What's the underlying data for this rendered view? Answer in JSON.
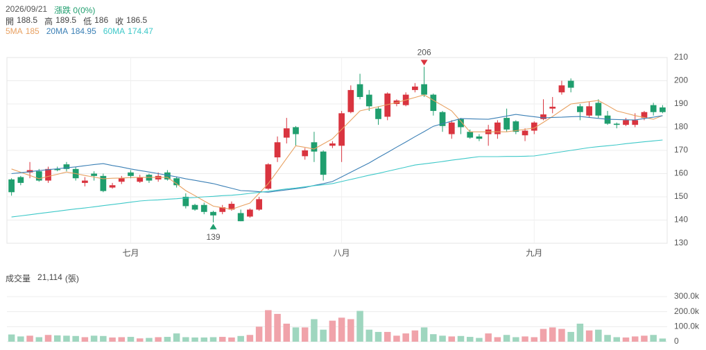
{
  "header": {
    "date": "2026/09/21",
    "change": "漲跌 0(0%)"
  },
  "chart_data": [
    {
      "type": "candlestick",
      "categories": [
        null,
        null,
        null,
        null,
        null,
        null,
        null,
        null,
        null,
        null,
        null,
        null,
        null,
        "七月",
        null,
        null,
        null,
        null,
        null,
        null,
        null,
        null,
        null,
        null,
        null,
        null,
        null,
        null,
        null,
        null,
        null,
        null,
        null,
        null,
        null,
        null,
        "八月",
        null,
        null,
        null,
        null,
        null,
        null,
        null,
        null,
        null,
        null,
        null,
        null,
        null,
        null,
        null,
        null,
        null,
        null,
        null,
        null,
        "九月",
        null,
        null,
        null,
        null,
        null,
        null,
        null,
        null,
        null,
        null,
        null,
        null,
        null,
        null
      ],
      "open": [
        157.5,
        158.5,
        160.5,
        161,
        157,
        162,
        164,
        162,
        156,
        160,
        159,
        154,
        156.5,
        160.5,
        156.5,
        159.5,
        157.5,
        160.5,
        158,
        150,
        146.5,
        146.5,
        143.5,
        143.5,
        144.5,
        143,
        141.5,
        144.5,
        153.5,
        167,
        175.5,
        180,
        167.5,
        173.5,
        169.5,
        172,
        172,
        186.5,
        198.5,
        194,
        188,
        184.5,
        190,
        189.5,
        196,
        198.5,
        194,
        186.5,
        177,
        183.5,
        178,
        176,
        177,
        177,
        184,
        182.5,
        176.5,
        178.5,
        183.5,
        188,
        195,
        200,
        189,
        185,
        190.5,
        185,
        181.5,
        181,
        181,
        184,
        189.5,
        188.5
      ],
      "high": [
        158,
        159,
        165,
        162,
        163,
        163,
        165,
        163,
        158.5,
        161,
        160,
        156,
        159,
        161.5,
        159.5,
        160,
        160.5,
        161.5,
        158.5,
        151.5,
        147,
        147.5,
        144,
        146.5,
        148,
        144.5,
        145,
        150,
        164.5,
        176,
        184,
        180.5,
        171,
        178,
        170,
        174,
        187,
        198,
        203,
        196,
        189,
        195,
        192,
        195,
        199,
        206,
        194.5,
        187,
        183,
        184,
        179,
        177,
        181,
        183,
        188,
        183,
        179.5,
        182.5,
        192,
        193,
        200,
        201,
        190,
        191,
        192,
        187,
        182,
        184,
        186,
        187,
        190.5,
        189.5
      ],
      "low": [
        150.5,
        155,
        158,
        156.5,
        156,
        161,
        161,
        157,
        154.5,
        157,
        152,
        153.5,
        155.5,
        158,
        156,
        156,
        156.5,
        157,
        154,
        145,
        144,
        142.5,
        139,
        142.5,
        144,
        139.5,
        141,
        144,
        153,
        165,
        173,
        172,
        166,
        165,
        157,
        171,
        165,
        186,
        192,
        187,
        181,
        183,
        189,
        189,
        195,
        193,
        185,
        178,
        175,
        177,
        175,
        174,
        172,
        175,
        178,
        177,
        174,
        177,
        183,
        186,
        194,
        195,
        183,
        184,
        184,
        181,
        179.5,
        180.5,
        180,
        183,
        185,
        186
      ],
      "close": [
        152,
        156,
        161.5,
        157,
        162,
        161.5,
        162,
        158,
        157,
        159,
        152.5,
        155,
        158,
        159,
        158.5,
        157,
        159,
        157.5,
        155,
        146,
        144.5,
        143.5,
        142,
        145.5,
        147,
        139.5,
        144.5,
        149,
        164,
        173.5,
        179.5,
        177,
        170,
        169.5,
        159.5,
        173,
        186,
        196,
        193,
        189,
        183.5,
        194.5,
        191.5,
        194,
        197.5,
        194,
        187,
        180.5,
        182,
        180,
        175.5,
        175,
        179,
        182,
        179,
        178,
        178.5,
        182,
        185.5,
        188.8,
        198,
        197,
        186.5,
        189,
        185,
        181.5,
        181,
        183,
        183,
        186.5,
        186.5,
        186.5
      ],
      "up_color": "#d9343f",
      "down_color": "#1f9e6e",
      "ohlc_labels": {
        "open": "開",
        "high": "高",
        "low": "低",
        "close": "收"
      },
      "series": [
        {
          "name": "5MA",
          "color": "#e8a060",
          "values": [
            162,
            160.6,
            159.2,
            157.8,
            158.8,
            159.7,
            160.7,
            160.0,
            159.2,
            158.5,
            157.8,
            158.0,
            158.1,
            158.3,
            158.4,
            158.4,
            158.4,
            158.4,
            155.6,
            152.7,
            150.5,
            148.2,
            146,
            145.3,
            144.6,
            146.0,
            147.3,
            151.5,
            155.7,
            161.1,
            166.6,
            172,
            171.3,
            170.6,
            172.8,
            175,
            179.0,
            183.0,
            187,
            187.9,
            188.8,
            189.7,
            190.6,
            191.7,
            192.8,
            193.9,
            191.6,
            189.3,
            187,
            182.5,
            178,
            178,
            178,
            178,
            178,
            178.5,
            179.1,
            179.6,
            182.1,
            184.6,
            187.3,
            190,
            190.5,
            191,
            191.5,
            189.3,
            187,
            186,
            185,
            184.2,
            183.4,
            185
          ]
        },
        {
          "name": "20MA",
          "color": "#3a7fb5",
          "values": [
            160,
            160.4,
            160.8,
            161.3,
            161.7,
            162.1,
            162.5,
            162.9,
            163.4,
            163.9,
            164.3,
            163.5,
            162.8,
            162.0,
            161.3,
            160.7,
            160.0,
            159.3,
            158.6,
            157.8,
            157.1,
            156.4,
            155.7,
            154.7,
            153.7,
            152.7,
            152.5,
            152.2,
            152.0,
            152.5,
            153.0,
            153.5,
            154.0,
            154.9,
            155.7,
            156.6,
            158.6,
            160.6,
            162.6,
            164.6,
            166.9,
            169.1,
            171.4,
            173.6,
            175.9,
            178.1,
            180.4,
            181.5,
            182.6,
            183.7,
            183.6,
            183.5,
            183.4,
            184.1,
            184.8,
            185.5,
            185.0,
            184.5,
            184.0,
            184.2,
            184.3,
            184.5,
            184.6,
            184.2,
            183.8,
            183.4,
            183.3,
            183.2,
            183.1,
            183.7,
            184.3,
            184.95
          ]
        },
        {
          "name": "60MA",
          "color": "#3cc8c8",
          "values": [
            141.3,
            141.8,
            142.3,
            142.8,
            143.3,
            143.8,
            144.3,
            144.8,
            145.2,
            145.7,
            146.2,
            146.7,
            147.2,
            147.7,
            148.2,
            148.5,
            148.7,
            149.0,
            149.2,
            149.5,
            149.7,
            150.0,
            150.2,
            150.5,
            150.7,
            151.0,
            151.5,
            151.9,
            152.4,
            152.9,
            153.4,
            153.8,
            154.3,
            154.8,
            155.2,
            155.7,
            156.6,
            157.5,
            158.4,
            159.3,
            160.1,
            161.0,
            161.9,
            162.8,
            163.7,
            164.2,
            164.7,
            165.2,
            165.8,
            166.3,
            166.8,
            167.3,
            167.3,
            167.3,
            167.4,
            167.4,
            167.5,
            167.6,
            168.2,
            168.8,
            169.4,
            170.0,
            170.6,
            171.2,
            171.6,
            172.0,
            172.4,
            172.9,
            173.3,
            173.7,
            174.1,
            174.47
          ]
        }
      ],
      "ylim": [
        130,
        210
      ],
      "yticks": [
        130,
        140,
        150,
        160,
        170,
        180,
        190,
        200,
        210
      ],
      "grid": true,
      "max_label": 206,
      "min_label": 139
    },
    {
      "type": "bar",
      "title": "成交量",
      "last_label": "21,114",
      "unit": "(張)",
      "values": [
        48000,
        35000,
        40000,
        30000,
        45000,
        42000,
        40000,
        38000,
        30000,
        40000,
        38000,
        28000,
        30000,
        32000,
        22000,
        25000,
        30000,
        32000,
        55000,
        30000,
        28000,
        28000,
        30000,
        32000,
        28000,
        38000,
        45000,
        100000,
        210000,
        185000,
        120000,
        95000,
        95000,
        150000,
        80000,
        140000,
        160000,
        150000,
        205000,
        80000,
        65000,
        65000,
        40000,
        55000,
        75000,
        95000,
        50000,
        40000,
        35000,
        38000,
        32000,
        25000,
        55000,
        30000,
        45000,
        30000,
        35000,
        30000,
        85000,
        95000,
        85000,
        65000,
        120000,
        75000,
        80000,
        45000,
        30000,
        28000,
        35000,
        40000,
        45000,
        21114
      ],
      "up_color": "#f0a3aa",
      "down_color": "#9fd6bf",
      "ylim": [
        0,
        300000
      ],
      "yticks": [
        0,
        {
          "value": 100000,
          "label": "100.0k"
        },
        {
          "value": 200000,
          "label": "200.0k"
        },
        {
          "value": 300000,
          "label": "300.0k"
        }
      ],
      "grid": true
    }
  ]
}
